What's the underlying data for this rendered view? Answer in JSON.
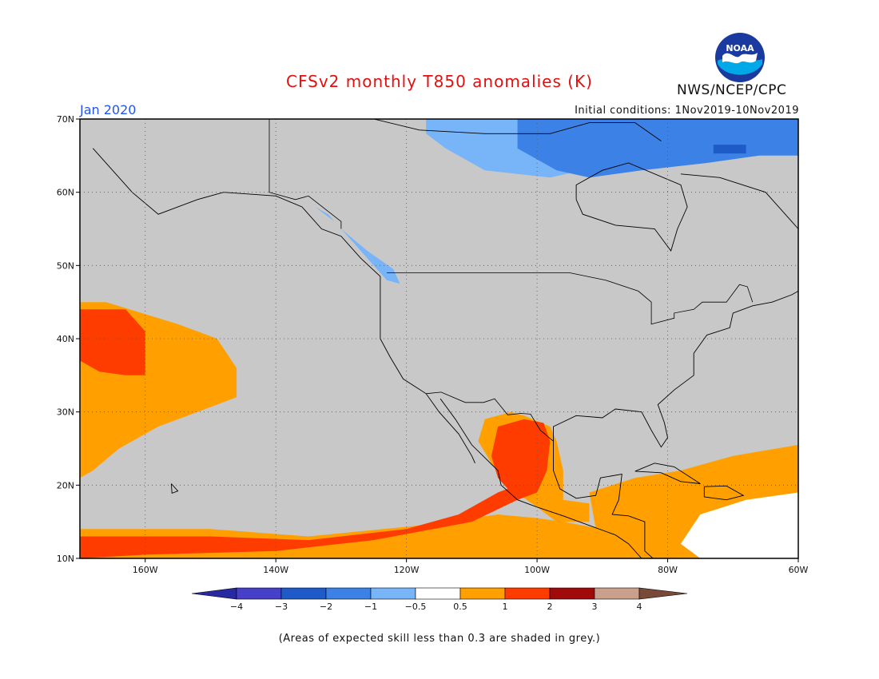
{
  "header": {
    "title": "CFSv2 monthly T850 anomalies (K)",
    "month": "Jan 2020",
    "initial_conditions": "Initial conditions: 1Nov2019-10Nov2019",
    "agency": "NWS/NCEP/CPC",
    "logo_text": "NOAA"
  },
  "map": {
    "lon_range": [
      -170,
      -60
    ],
    "lat_range": [
      10,
      70
    ],
    "lat_ticks": [
      {
        "value": 70,
        "label": "70N"
      },
      {
        "value": 60,
        "label": "60N"
      },
      {
        "value": 50,
        "label": "50N"
      },
      {
        "value": 40,
        "label": "40N"
      },
      {
        "value": 30,
        "label": "30N"
      },
      {
        "value": 20,
        "label": "20N"
      },
      {
        "value": 10,
        "label": "10N"
      }
    ],
    "lon_ticks": [
      {
        "value": -160,
        "label": "160W"
      },
      {
        "value": -140,
        "label": "140W"
      },
      {
        "value": -120,
        "label": "120W"
      },
      {
        "value": -100,
        "label": "100W"
      },
      {
        "value": -80,
        "label": "80W"
      },
      {
        "value": -60,
        "label": "60W"
      }
    ],
    "background_color": "#c8c8c8",
    "regions": [
      {
        "name": "north-canada-weak-cold",
        "level": "-1 to -0.5",
        "color": "#78b4f8",
        "points": [
          [
            -117,
            70
          ],
          [
            -60,
            70
          ],
          [
            -60,
            66
          ],
          [
            -78,
            66
          ],
          [
            -88,
            64
          ],
          [
            -98,
            62
          ],
          [
            -108,
            63
          ],
          [
            -114,
            66
          ],
          [
            -117,
            68
          ]
        ]
      },
      {
        "name": "north-canada-cold",
        "level": "-2 to -1",
        "color": "#3c82e6",
        "points": [
          [
            -103,
            70
          ],
          [
            -60,
            70
          ],
          [
            -60,
            65
          ],
          [
            -66,
            65
          ],
          [
            -74,
            64
          ],
          [
            -84,
            63
          ],
          [
            -92,
            62
          ],
          [
            -97,
            63
          ],
          [
            -103,
            66
          ]
        ]
      },
      {
        "name": "hudson-strait-cold",
        "level": "-3 to -2",
        "color": "#1e5ac8",
        "points": [
          [
            -73,
            66.5
          ],
          [
            -68,
            66.5
          ],
          [
            -68,
            65.3
          ],
          [
            -73,
            65.3
          ]
        ]
      },
      {
        "name": "british-columbia-coast-cold",
        "level": "-1 to -0.5",
        "color": "#78b4f8",
        "points": [
          [
            -134,
            58
          ],
          [
            -131,
            56
          ],
          [
            -128,
            53
          ],
          [
            -126,
            51
          ],
          [
            -123,
            48
          ],
          [
            -121,
            47.5
          ],
          [
            -122,
            49.5
          ],
          [
            -126,
            52
          ],
          [
            -130,
            55
          ],
          [
            -132,
            57
          ]
        ]
      },
      {
        "name": "pacific-warm-pool",
        "level": "0.5 to 1",
        "color": "#ffa000",
        "points": [
          [
            -170,
            45
          ],
          [
            -166,
            45
          ],
          [
            -155,
            42
          ],
          [
            -149,
            40
          ],
          [
            -146,
            36
          ],
          [
            -146,
            32
          ],
          [
            -152,
            30
          ],
          [
            -158,
            28
          ],
          [
            -164,
            25
          ],
          [
            -168,
            22
          ],
          [
            -170,
            21
          ]
        ]
      },
      {
        "name": "pacific-warm-core",
        "level": "1 to 2",
        "color": "#ff3c00",
        "points": [
          [
            -170,
            44
          ],
          [
            -163,
            44
          ],
          [
            -160,
            41
          ],
          [
            -160,
            35
          ],
          [
            -163,
            35
          ],
          [
            -167,
            35.5
          ],
          [
            -170,
            37
          ]
        ]
      },
      {
        "name": "tropical-pacific-warm",
        "level": "0.5 to 1",
        "color": "#ffa000",
        "points": [
          [
            -170,
            14
          ],
          [
            -150,
            14
          ],
          [
            -135,
            13
          ],
          [
            -118,
            14.5
          ],
          [
            -106,
            16
          ],
          [
            -100,
            15.5
          ],
          [
            -96,
            15
          ],
          [
            -90,
            14
          ],
          [
            -85,
            11
          ],
          [
            -82,
            10
          ],
          [
            -170,
            10
          ]
        ]
      },
      {
        "name": "tropical-pacific-warm-core",
        "level": "1 to 2",
        "color": "#ff3c00",
        "points": [
          [
            -170,
            13
          ],
          [
            -150,
            13
          ],
          [
            -135,
            12.5
          ],
          [
            -120,
            14
          ],
          [
            -112,
            16
          ],
          [
            -106,
            19
          ],
          [
            -103,
            20
          ],
          [
            -103,
            18
          ],
          [
            -110,
            15
          ],
          [
            -125,
            12.5
          ],
          [
            -140,
            11
          ],
          [
            -160,
            10.5
          ],
          [
            -170,
            10
          ]
        ]
      },
      {
        "name": "mexico-warm",
        "level": "0.5 to 1",
        "color": "#ffa000",
        "points": [
          [
            -108,
            29
          ],
          [
            -104,
            30
          ],
          [
            -102,
            29.5
          ],
          [
            -98,
            28
          ],
          [
            -97,
            26
          ],
          [
            -96,
            22
          ],
          [
            -96,
            18
          ],
          [
            -92,
            17.5
          ],
          [
            -92,
            15
          ],
          [
            -97,
            15
          ],
          [
            -100,
            17
          ],
          [
            -104,
            19.5
          ],
          [
            -107,
            23
          ],
          [
            -109,
            26
          ]
        ]
      },
      {
        "name": "mexico-warm-core",
        "level": "1 to 2",
        "color": "#ff3c00",
        "points": [
          [
            -106,
            28
          ],
          [
            -102,
            29
          ],
          [
            -99,
            28.5
          ],
          [
            -98,
            26
          ],
          [
            -98.5,
            22
          ],
          [
            -100,
            19
          ],
          [
            -103,
            18
          ],
          [
            -106,
            21
          ],
          [
            -107,
            24
          ]
        ]
      },
      {
        "name": "caribbean-warm",
        "level": "0.5 to 1",
        "color": "#ffa000",
        "points": [
          [
            -92,
            19
          ],
          [
            -85,
            21
          ],
          [
            -78,
            22
          ],
          [
            -70,
            24
          ],
          [
            -60,
            25.5
          ],
          [
            -60,
            10
          ],
          [
            -84,
            10
          ],
          [
            -88,
            12
          ],
          [
            -91,
            14
          ]
        ]
      },
      {
        "name": "caribbean-near-normal",
        "level": "-0.5 to 0.5",
        "color": "#ffffff",
        "points": [
          [
            -75,
            16
          ],
          [
            -68,
            18
          ],
          [
            -60,
            19
          ],
          [
            -60,
            10
          ],
          [
            -75,
            10
          ],
          [
            -78,
            12
          ]
        ]
      }
    ],
    "coastlines": [
      {
        "name": "north-america-west-coast",
        "points": [
          [
            -168,
            66
          ],
          [
            -162,
            60
          ],
          [
            -158,
            57
          ],
          [
            -152,
            59
          ],
          [
            -148,
            60
          ],
          [
            -140,
            59.5
          ],
          [
            -136,
            58
          ],
          [
            -133,
            55
          ],
          [
            -130,
            54
          ],
          [
            -127,
            51
          ],
          [
            -124,
            48.5
          ],
          [
            -124,
            43
          ],
          [
            -124,
            40
          ],
          [
            -122.5,
            37.5
          ],
          [
            -120.5,
            34.5
          ],
          [
            -117,
            32.5
          ],
          [
            -115,
            30
          ],
          [
            -112,
            27
          ],
          [
            -110,
            24
          ],
          [
            -109.5,
            23
          ]
        ]
      },
      {
        "name": "gulf-of-california-east",
        "points": [
          [
            -114.8,
            31.8
          ],
          [
            -112.5,
            29
          ],
          [
            -110,
            25.5
          ],
          [
            -106,
            22
          ],
          [
            -105.5,
            20
          ],
          [
            -103,
            18
          ],
          [
            -100,
            17
          ],
          [
            -96,
            15.8
          ],
          [
            -92,
            14.5
          ],
          [
            -88,
            13.2
          ],
          [
            -86,
            12
          ],
          [
            -84,
            10
          ]
        ]
      },
      {
        "name": "gulf-of-mexico-coast",
        "points": [
          [
            -97.5,
            26
          ],
          [
            -97.5,
            28
          ],
          [
            -94,
            29.5
          ],
          [
            -90,
            29.2
          ],
          [
            -88,
            30.4
          ],
          [
            -84,
            30
          ],
          [
            -82.5,
            27.5
          ],
          [
            -81,
            25.2
          ],
          [
            -80,
            26.5
          ],
          [
            -80.5,
            28.5
          ],
          [
            -81.5,
            31
          ],
          [
            -79,
            33
          ],
          [
            -76,
            35
          ],
          [
            -76,
            38
          ],
          [
            -74,
            40.5
          ],
          [
            -70.5,
            41.5
          ],
          [
            -70,
            43.5
          ],
          [
            -67,
            44.5
          ],
          [
            -64,
            45
          ],
          [
            -61,
            46
          ],
          [
            -60,
            46.5
          ]
        ]
      },
      {
        "name": "yucatan-coast",
        "points": [
          [
            -97.5,
            26
          ],
          [
            -97.5,
            22
          ],
          [
            -96.5,
            19.5
          ],
          [
            -94,
            18.2
          ],
          [
            -91,
            18.6
          ],
          [
            -90.3,
            21
          ],
          [
            -87,
            21.5
          ],
          [
            -87.5,
            18
          ],
          [
            -88.5,
            16
          ],
          [
            -86,
            15.8
          ],
          [
            -83.5,
            15
          ],
          [
            -83.5,
            11
          ],
          [
            -81,
            9
          ]
        ]
      },
      {
        "name": "hudson-bay",
        "points": [
          [
            -94,
            59
          ],
          [
            -93,
            57
          ],
          [
            -88,
            55.5
          ],
          [
            -82,
            55
          ],
          [
            -79.5,
            52
          ],
          [
            -78.5,
            55
          ],
          [
            -77,
            58
          ],
          [
            -78,
            61
          ],
          [
            -86,
            64
          ],
          [
            -90,
            63
          ],
          [
            -94,
            61
          ],
          [
            -94,
            59
          ]
        ]
      },
      {
        "name": "cuba",
        "points": [
          [
            -85,
            21.9
          ],
          [
            -82,
            23
          ],
          [
            -79,
            22.5
          ],
          [
            -75,
            20.2
          ],
          [
            -78,
            20.5
          ],
          [
            -81,
            21.7
          ],
          [
            -85,
            21.9
          ]
        ]
      },
      {
        "name": "hispaniola",
        "points": [
          [
            -74.4,
            19.8
          ],
          [
            -71,
            19.9
          ],
          [
            -68.4,
            18.6
          ],
          [
            -71,
            18
          ],
          [
            -74.4,
            18.4
          ],
          [
            -74.4,
            19.8
          ]
        ]
      },
      {
        "name": "hawaii",
        "points": [
          [
            -156,
            20.2
          ],
          [
            -155,
            19.2
          ],
          [
            -155.9,
            18.9
          ],
          [
            -156,
            20.2
          ]
        ]
      },
      {
        "name": "labrador",
        "points": [
          [
            -78,
            62.5
          ],
          [
            -72,
            62
          ],
          [
            -65,
            60
          ],
          [
            -61,
            56
          ],
          [
            -57,
            52
          ],
          [
            -60,
            50
          ]
        ]
      },
      {
        "name": "canadian-arctic",
        "points": [
          [
            -125,
            70
          ],
          [
            -118,
            68.5
          ],
          [
            -108,
            68
          ],
          [
            -98,
            68
          ],
          [
            -92,
            69.5
          ],
          [
            -85,
            69.5
          ],
          [
            -81,
            67
          ]
        ]
      }
    ],
    "borders": [
      {
        "name": "us-canada-border",
        "points": [
          [
            -123,
            49
          ],
          [
            -95,
            49
          ],
          [
            -89.5,
            48
          ],
          [
            -84.5,
            46.5
          ],
          [
            -82.5,
            45
          ],
          [
            -82.5,
            42
          ],
          [
            -79,
            42.8
          ],
          [
            -79,
            43.5
          ],
          [
            -76,
            44
          ],
          [
            -74.7,
            45
          ],
          [
            -71,
            45
          ],
          [
            -69,
            47.4
          ],
          [
            -67.8,
            47.1
          ],
          [
            -67,
            45
          ]
        ]
      },
      {
        "name": "alaska-canada-border",
        "points": [
          [
            -141,
            70
          ],
          [
            -141,
            60
          ],
          [
            -137,
            59
          ],
          [
            -135,
            59.5
          ],
          [
            -130,
            56
          ],
          [
            -130,
            55
          ]
        ]
      },
      {
        "name": "us-mexico-border",
        "points": [
          [
            -117,
            32.5
          ],
          [
            -114.7,
            32.7
          ],
          [
            -111,
            31.3
          ],
          [
            -108.2,
            31.3
          ],
          [
            -106.5,
            31.8
          ],
          [
            -104.5,
            29.6
          ],
          [
            -102.5,
            29.8
          ],
          [
            -101,
            29.7
          ],
          [
            -99.5,
            27.5
          ],
          [
            -97.5,
            26
          ]
        ]
      }
    ]
  },
  "colorbar": {
    "colors": [
      "#2828a0",
      "#4640c8",
      "#1e5ac8",
      "#3c82e6",
      "#78b4f8",
      "#ffffff",
      "#ffa000",
      "#ff3c00",
      "#a00a0a",
      "#c8a08c",
      "#7a4a38"
    ],
    "labels": [
      "−4",
      "−3",
      "−2",
      "−1",
      "−0.5",
      "0.5",
      "1",
      "2",
      "3",
      "4"
    ]
  },
  "footnote": "(Areas of expected skill less than 0.3 are shaded in grey.)"
}
